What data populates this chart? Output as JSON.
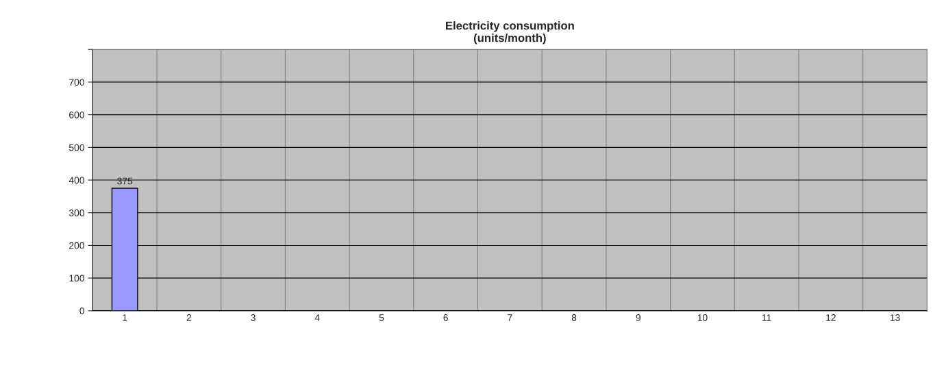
{
  "chart_data": {
    "type": "bar",
    "title": "Electricity consumption\n(units/month)",
    "categories": [
      "1",
      "2",
      "3",
      "4",
      "5",
      "6",
      "7",
      "8",
      "9",
      "10",
      "11",
      "12",
      "13"
    ],
    "values": [
      375,
      null,
      null,
      null,
      null,
      null,
      null,
      null,
      null,
      null,
      null,
      null,
      null
    ],
    "color": "#9999ff",
    "ylim": [
      0,
      800
    ],
    "yticks": [
      0,
      100,
      200,
      300,
      400,
      500,
      600,
      700,
      {
        "value": 800,
        "label": null
      }
    ],
    "grid": true,
    "data_labels": true
  }
}
